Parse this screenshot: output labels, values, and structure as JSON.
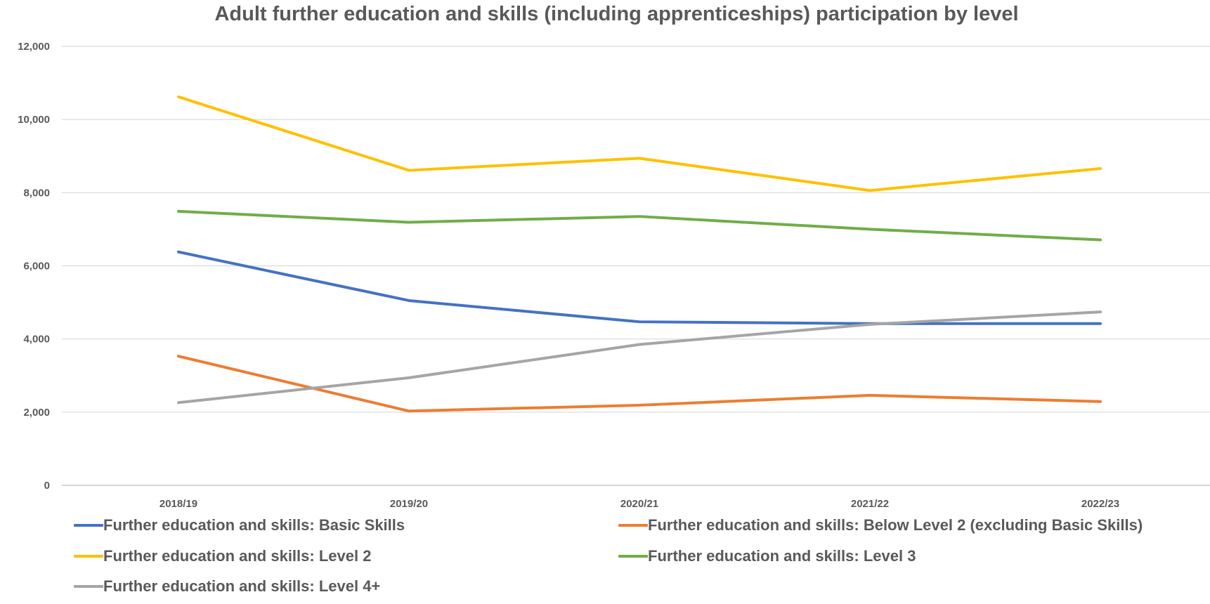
{
  "chart_data": {
    "type": "line",
    "title": "Adult further education and skills (including apprenticeships) participation by level",
    "categories": [
      "2018/19",
      "2019/20",
      "2020/21",
      "2021/22",
      "2022/23"
    ],
    "y_ticks": [
      "0",
      "2,000",
      "4,000",
      "6,000",
      "8,000",
      "10,000",
      "12,000"
    ],
    "ylim": [
      0,
      12000
    ],
    "grid": true,
    "legend_position": "bottom",
    "series": [
      {
        "name": "Further education and skills: Basic Skills",
        "color": "#4472C4",
        "values": [
          6380,
          5050,
          4470,
          4420,
          4420
        ]
      },
      {
        "name": "Further education and skills: Below Level 2 (excluding Basic Skills)",
        "color": "#ED7D31",
        "values": [
          3530,
          2030,
          2190,
          2460,
          2290
        ]
      },
      {
        "name": "Further education and skills: Level 2",
        "color": "#FFC000",
        "values": [
          10620,
          8610,
          8940,
          8060,
          8660
        ]
      },
      {
        "name": "Further education and skills: Level 3",
        "color": "#70AD47",
        "values": [
          7490,
          7190,
          7350,
          7000,
          6710
        ]
      },
      {
        "name": "Further education and skills: Level 4+",
        "color": "#A5A5A5",
        "values": [
          2260,
          2940,
          3850,
          4400,
          4740
        ]
      }
    ]
  }
}
